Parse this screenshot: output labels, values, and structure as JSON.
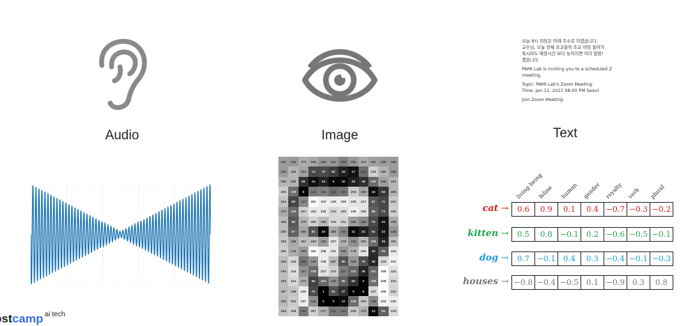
{
  "labels": {
    "audio": "Audio",
    "image": "Image",
    "text": "Text"
  },
  "icons": {
    "audio": "ear-icon",
    "image": "eye-icon"
  },
  "email": {
    "korean": "오늘 8시 미팅은 아래 주소로 하겠습니다.\n교수님, 오늘 전체 조교들이 조교 미팅 들어가\n혹시라도 예정시간 보다 늦어지면 미리 말씀!\n겠습니다.",
    "invite": "PAMI Lab is inviting you to a scheduled Z\nmeeting.",
    "topic": "Topic: PAMI Lab's Zoom Meeting\nTime: Jan 11, 2021 08:00 PM Seoul",
    "join": "Join Zoom Meeting"
  },
  "pixel_values": [
    [
      157,
      153,
      174,
      168,
      150,
      152,
      129,
      151,
      172,
      161,
      155,
      156
    ],
    [
      155,
      182,
      163,
      74,
      75,
      62,
      33,
      17,
      110,
      210,
      180,
      154
    ],
    [
      180,
      180,
      50,
      14,
      34,
      6,
      10,
      33,
      48,
      106,
      159,
      181
    ],
    [
      206,
      109,
      5,
      124,
      131,
      111,
      120,
      204,
      166,
      15,
      56,
      180
    ],
    [
      194,
      68,
      137,
      251,
      237,
      239,
      239,
      228,
      227,
      87,
      71,
      201
    ],
    [
      172,
      106,
      207,
      233,
      233,
      214,
      220,
      239,
      228,
      98,
      74,
      206
    ],
    [
      188,
      88,
      179,
      209,
      185,
      215,
      211,
      158,
      139,
      75,
      20,
      169
    ],
    [
      189,
      97,
      165,
      84,
      10,
      168,
      134,
      11,
      31,
      62,
      22,
      148
    ],
    [
      199,
      168,
      191,
      193,
      158,
      227,
      178,
      143,
      182,
      105,
      36,
      190
    ],
    [
      205,
      174,
      155,
      252,
      236,
      231,
      149,
      178,
      228,
      43,
      95,
      234
    ],
    [
      190,
      216,
      116,
      149,
      236,
      187,
      85,
      150,
      79,
      38,
      218,
      241
    ],
    [
      190,
      224,
      147,
      108,
      227,
      210,
      127,
      102,
      36,
      101,
      255,
      224
    ],
    [
      190,
      214,
      173,
      66,
      103,
      143,
      96,
      50,
      2,
      109,
      249,
      215
    ],
    [
      187,
      196,
      235,
      75,
      1,
      81,
      47,
      0,
      6,
      217,
      255,
      211
    ],
    [
      183,
      202,
      237,
      145,
      0,
      0,
      12,
      108,
      200,
      138,
      243,
      236
    ],
    [
      195,
      206,
      123,
      207,
      177,
      121,
      123,
      200,
      175,
      13,
      96,
      218
    ]
  ],
  "embedding": {
    "features": [
      "living being",
      "feline",
      "human",
      "gender",
      "royalty",
      "verb",
      "plural"
    ],
    "rows": [
      {
        "word": "cat",
        "arrow": "→",
        "color": "#e01818",
        "values": [
          "0.6",
          "0.9",
          "0.1",
          "0.4",
          "−0.7",
          "−0.3",
          "−0.2"
        ]
      },
      {
        "word": "kitten",
        "arrow": "→",
        "color": "#1aa84a",
        "values": [
          "0.5",
          "0.8",
          "−0.1",
          "0.2",
          "−0.6",
          "−0.5",
          "−0.1"
        ]
      },
      {
        "word": "dog",
        "arrow": "→",
        "color": "#1a9bd6",
        "values": [
          "0.7",
          "−0.1",
          "0.4",
          "0.3",
          "−0.4",
          "−0.1",
          "−0.3"
        ]
      },
      {
        "word": "houses",
        "arrow": "→",
        "color": "#777777",
        "values": [
          "−0.8",
          "−0.4",
          "−0.5",
          "0.1",
          "−0.9",
          "0.3",
          "0.8"
        ]
      }
    ]
  },
  "logo": {
    "prefix": "ost",
    "camp": "camp",
    "suffix": "ai tech"
  }
}
